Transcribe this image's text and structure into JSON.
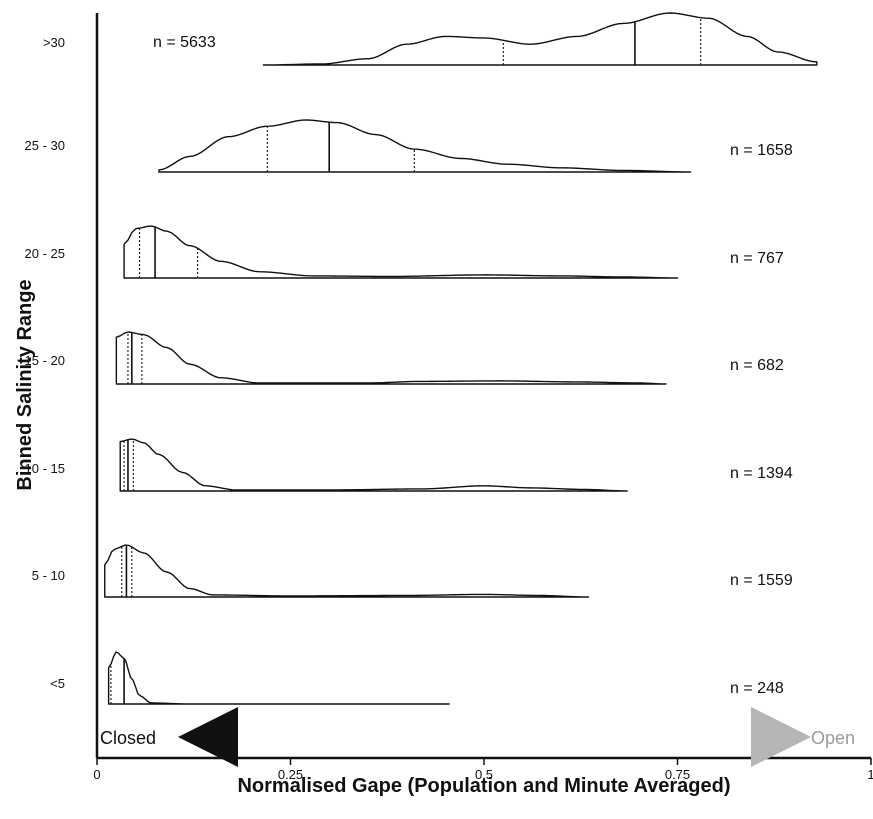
{
  "chart_data": {
    "type": "violin",
    "xlabel": "Normalised Gape (Population and Minute Averaged)",
    "ylabel": "Binned Salinity Range",
    "xlim": [
      0,
      1
    ],
    "x_ticks": [
      "0",
      "0.25",
      "0.5",
      "0.75",
      "1"
    ],
    "x_tick_values": [
      0,
      0.25,
      0.5,
      0.75,
      1
    ],
    "gradient_labels": {
      "closed": "Closed",
      "open": "Open"
    },
    "colors": {
      "outline": "#111111",
      "gradient_start": "#111111",
      "gradient_end": "#b5b5b5",
      "open_label": "#9a9a9a"
    },
    "categories": [
      ">30",
      "25 - 30",
      "20 - 25",
      "15 - 20",
      "10 - 15",
      "5 - 10",
      "<5"
    ],
    "groups": [
      {
        "label": ">30",
        "n_label": "n = 5633",
        "n_position": "left",
        "range": [
          0.215,
          0.93
        ],
        "median": 0.695,
        "q1": 0.525,
        "q3": 0.78,
        "density": [
          [
            0.215,
            0.0
          ],
          [
            0.29,
            0.02
          ],
          [
            0.35,
            0.12
          ],
          [
            0.4,
            0.4
          ],
          [
            0.45,
            0.55
          ],
          [
            0.5,
            0.52
          ],
          [
            0.56,
            0.4
          ],
          [
            0.62,
            0.55
          ],
          [
            0.68,
            0.8
          ],
          [
            0.74,
            1.0
          ],
          [
            0.79,
            0.9
          ],
          [
            0.84,
            0.55
          ],
          [
            0.88,
            0.25
          ],
          [
            0.93,
            0.06
          ]
        ]
      },
      {
        "label": "25 - 30",
        "n_label": "n = 1658",
        "n_position": "right",
        "range": [
          0.08,
          0.767
        ],
        "median": 0.3,
        "q1": 0.22,
        "q3": 0.41,
        "density": [
          [
            0.08,
            0.04
          ],
          [
            0.12,
            0.3
          ],
          [
            0.17,
            0.68
          ],
          [
            0.22,
            0.88
          ],
          [
            0.27,
            1.0
          ],
          [
            0.31,
            0.95
          ],
          [
            0.36,
            0.72
          ],
          [
            0.41,
            0.44
          ],
          [
            0.47,
            0.26
          ],
          [
            0.53,
            0.15
          ],
          [
            0.6,
            0.08
          ],
          [
            0.68,
            0.03
          ],
          [
            0.767,
            0.0
          ]
        ]
      },
      {
        "label": "20 - 25",
        "n_label": "n = 767",
        "n_position": "right",
        "range": [
          0.035,
          0.75
        ],
        "median": 0.075,
        "q1": 0.055,
        "q3": 0.13,
        "density": [
          [
            0.035,
            0.65
          ],
          [
            0.05,
            0.95
          ],
          [
            0.07,
            1.0
          ],
          [
            0.09,
            0.9
          ],
          [
            0.12,
            0.62
          ],
          [
            0.16,
            0.32
          ],
          [
            0.21,
            0.12
          ],
          [
            0.28,
            0.04
          ],
          [
            0.38,
            0.03
          ],
          [
            0.5,
            0.06
          ],
          [
            0.6,
            0.04
          ],
          [
            0.68,
            0.02
          ],
          [
            0.75,
            0.0
          ]
        ]
      },
      {
        "label": "15 - 20",
        "n_label": "n = 682",
        "n_position": "right",
        "range": [
          0.025,
          0.735
        ],
        "median": 0.045,
        "q1": 0.04,
        "q3": 0.058,
        "density": [
          [
            0.025,
            0.9
          ],
          [
            0.04,
            1.0
          ],
          [
            0.06,
            0.95
          ],
          [
            0.09,
            0.7
          ],
          [
            0.12,
            0.38
          ],
          [
            0.16,
            0.12
          ],
          [
            0.21,
            0.02
          ],
          [
            0.35,
            0.02
          ],
          [
            0.42,
            0.05
          ],
          [
            0.52,
            0.06
          ],
          [
            0.62,
            0.04
          ],
          [
            0.7,
            0.02
          ],
          [
            0.735,
            0.0
          ]
        ]
      },
      {
        "label": "10 - 15",
        "n_label": "n = 1394",
        "n_position": "right",
        "range": [
          0.03,
          0.685
        ],
        "median": 0.04,
        "q1": 0.035,
        "q3": 0.047,
        "density": [
          [
            0.03,
            0.95
          ],
          [
            0.045,
            1.0
          ],
          [
            0.06,
            0.93
          ],
          [
            0.08,
            0.7
          ],
          [
            0.11,
            0.36
          ],
          [
            0.14,
            0.1
          ],
          [
            0.18,
            0.02
          ],
          [
            0.3,
            0.02
          ],
          [
            0.42,
            0.04
          ],
          [
            0.5,
            0.1
          ],
          [
            0.56,
            0.06
          ],
          [
            0.63,
            0.03
          ],
          [
            0.685,
            0.0
          ]
        ]
      },
      {
        "label": "5 - 10",
        "n_label": "n = 1559",
        "n_position": "right",
        "range": [
          0.01,
          0.635
        ],
        "median": 0.038,
        "q1": 0.032,
        "q3": 0.045,
        "density": [
          [
            0.01,
            0.62
          ],
          [
            0.022,
            0.92
          ],
          [
            0.038,
            1.0
          ],
          [
            0.06,
            0.85
          ],
          [
            0.09,
            0.48
          ],
          [
            0.12,
            0.16
          ],
          [
            0.15,
            0.04
          ],
          [
            0.25,
            0.02
          ],
          [
            0.4,
            0.03
          ],
          [
            0.5,
            0.05
          ],
          [
            0.57,
            0.03
          ],
          [
            0.635,
            0.0
          ]
        ]
      },
      {
        "label": "<5",
        "n_label": "n = 248",
        "n_position": "right",
        "range": [
          0.015,
          0.455
        ],
        "median": 0.035,
        "q1": 0.018,
        "q3": 0.035,
        "density": [
          [
            0.015,
            0.7
          ],
          [
            0.025,
            1.0
          ],
          [
            0.035,
            0.88
          ],
          [
            0.045,
            0.48
          ],
          [
            0.055,
            0.16
          ],
          [
            0.07,
            0.02
          ],
          [
            0.12,
            0.0
          ],
          [
            0.455,
            0.0
          ]
        ]
      }
    ]
  }
}
